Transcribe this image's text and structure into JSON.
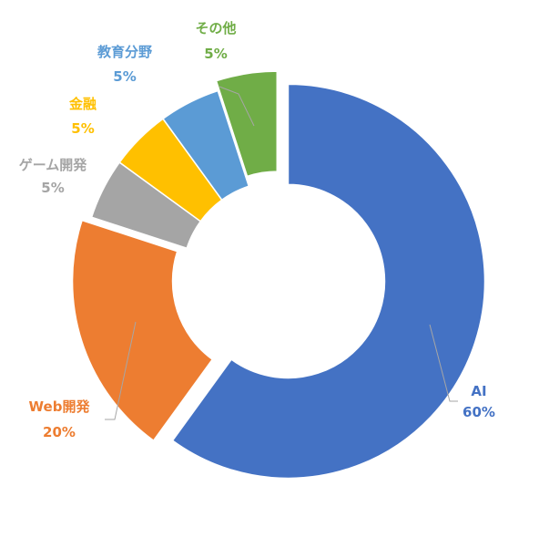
{
  "chart_data": {
    "type": "pie",
    "variant": "doughnut",
    "title": "",
    "legend": "none",
    "labels_outside": true,
    "slices": [
      {
        "name": "AI",
        "value": 60,
        "label": "60%",
        "color": "#4472C4",
        "exploded": true
      },
      {
        "name": "Web開発",
        "value": 20,
        "label": "20%",
        "color": "#ED7D31",
        "exploded": true
      },
      {
        "name": "ゲーム開発",
        "value": 5,
        "label": "5%",
        "color": "#A5A5A5",
        "exploded": false
      },
      {
        "name": "金融",
        "value": 5,
        "label": "5%",
        "color": "#FFC000",
        "exploded": false
      },
      {
        "name": "教育分野",
        "value": 5,
        "label": "5%",
        "color": "#5B9BD5",
        "exploded": false
      },
      {
        "name": "その他",
        "value": 5,
        "label": "5%",
        "color": "#70AD47",
        "exploded": true
      }
    ]
  }
}
